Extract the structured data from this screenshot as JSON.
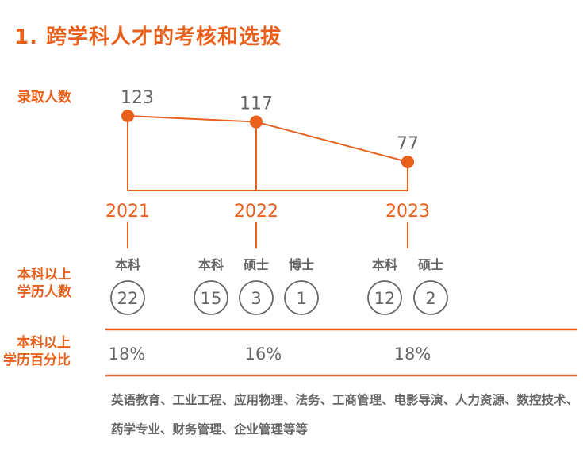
{
  "title": "1. 跨学科人才的考核和选拔",
  "row_labels": {
    "admitted": "录取人数",
    "degree_count": [
      "本科以上",
      "学历人数"
    ],
    "degree_pct": [
      "本科以上",
      "学历百分比"
    ]
  },
  "colors": {
    "accent": "#e8601c",
    "text": "#666666"
  },
  "chart_data": {
    "type": "line",
    "categories": [
      "2021",
      "2022",
      "2023"
    ],
    "values": [
      123,
      117,
      77
    ],
    "degrees": [
      [
        {
          "label": "本科",
          "count": "22"
        }
      ],
      [
        {
          "label": "本科",
          "count": "15"
        },
        {
          "label": "硕士",
          "count": "3"
        },
        {
          "label": "博士",
          "count": "1"
        }
      ],
      [
        {
          "label": "本科",
          "count": "12"
        },
        {
          "label": "硕士",
          "count": "2"
        }
      ]
    ],
    "percentages": [
      "18%",
      "16%",
      "18%"
    ]
  },
  "majors": "英语教育、工业工程、应用物理、法务、工商管理、电影导演、人力资源、数控技术、药学专业、财务管理、企业管理等等"
}
